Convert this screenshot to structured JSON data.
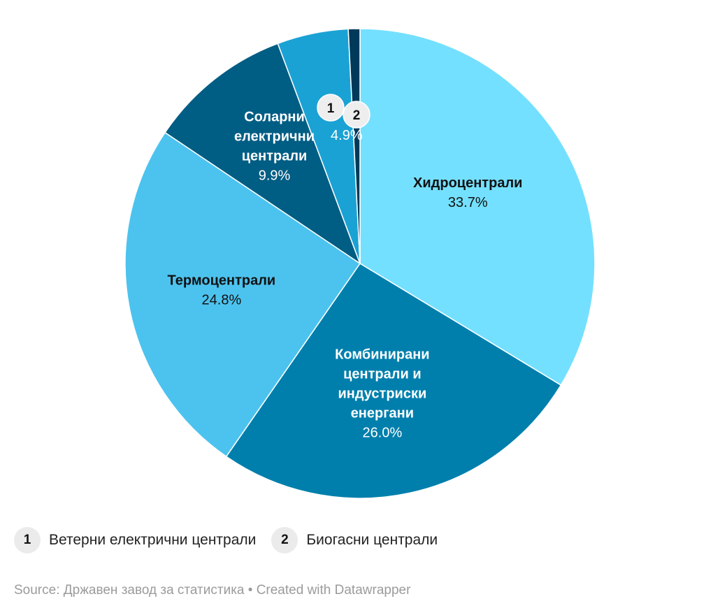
{
  "chart_data": {
    "type": "pie",
    "slices": [
      {
        "marker": "",
        "label": "Хидроцентрали",
        "value": 33.7,
        "value_label": "33.7%",
        "color": "#74e0ff",
        "text_color": "#111111"
      },
      {
        "marker": "",
        "label": "Комбинирани\nцентрали и\nиндустриски\nенергани",
        "value": 26.0,
        "value_label": "26.0%",
        "color": "#007fac",
        "text_color": "#ffffff"
      },
      {
        "marker": "",
        "label": "Термоцентрали",
        "value": 24.8,
        "value_label": "24.8%",
        "color": "#4cc3ee",
        "text_color": "#111111"
      },
      {
        "marker": "",
        "label": "Соларни\nелектрични\nцентрали",
        "value": 9.9,
        "value_label": "9.9%",
        "color": "#005d84",
        "text_color": "#ffffff"
      },
      {
        "marker": "1",
        "label": "",
        "value": 4.9,
        "value_label": "4.9%",
        "color": "#1ba2d4",
        "text_color": "#ffffff"
      },
      {
        "marker": "2",
        "label": "",
        "value": 0.8,
        "value_label": "",
        "color": "#00395a",
        "text_color": "#ffffff"
      }
    ]
  },
  "legend": {
    "items": [
      {
        "marker": "1",
        "label": "Ветерни електрични централи"
      },
      {
        "marker": "2",
        "label": "Биогасни централи"
      }
    ]
  },
  "footer": {
    "text": "Source: Државен завод за статистика • Created with Datawrapper"
  }
}
